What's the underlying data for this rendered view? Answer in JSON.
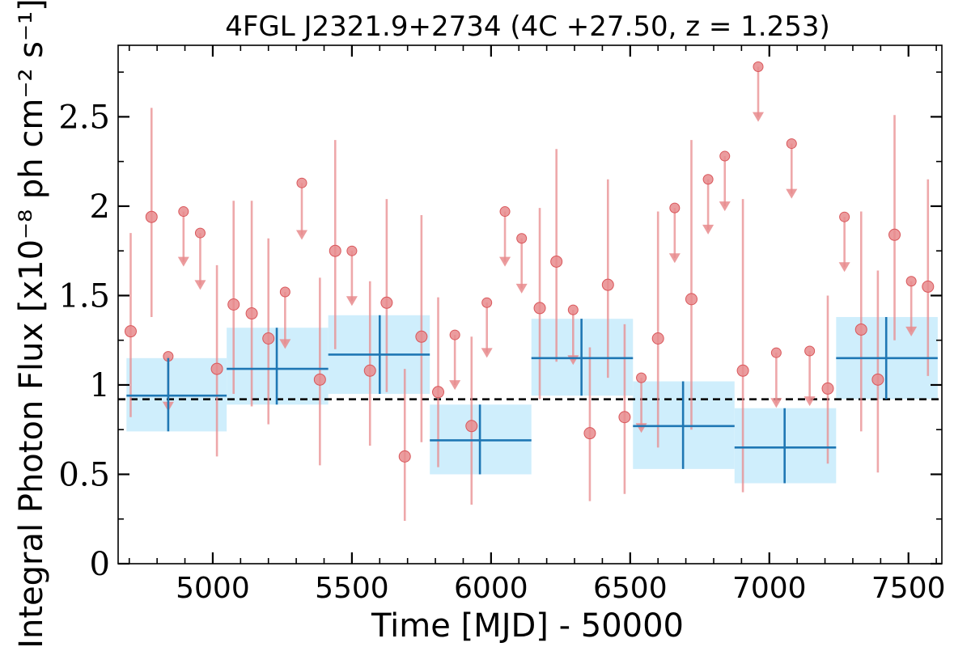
{
  "chart_data": {
    "type": "scatter",
    "title": "4FGL J2321.9+2734 (4C +27.50, z = 1.253)",
    "xlabel": "Time [MJD] - 50000",
    "ylabel": "Integral Photon Flux [x10⁻⁸ ph cm⁻² s⁻¹]",
    "xlim": [
      4660,
      7620
    ],
    "ylim": [
      0,
      2.9
    ],
    "x_ticks": [
      5000,
      5500,
      6000,
      6500,
      7000,
      7500
    ],
    "y_ticks": [
      0,
      0.5,
      1,
      1.5,
      2,
      2.5
    ],
    "y_tick_labels": [
      "0",
      "0.5",
      "1",
      "1.5",
      "2",
      "2.5"
    ],
    "mean_flux": 0.92,
    "colors": {
      "short_bin": "#e88b8d",
      "long_bin": "#1f77b4",
      "long_bin_band": "#cfeefc",
      "mean_line": "#000000"
    },
    "short_bins_detections": [
      {
        "x": 4705,
        "y": 1.3,
        "lo": 0.82,
        "hi": 1.85
      },
      {
        "x": 4780,
        "y": 1.94,
        "lo": 1.38,
        "hi": 2.55
      },
      {
        "x": 5015,
        "y": 1.09,
        "lo": 0.6,
        "hi": 1.67
      },
      {
        "x": 5075,
        "y": 1.45,
        "lo": 0.95,
        "hi": 2.03
      },
      {
        "x": 5140,
        "y": 1.4,
        "lo": 0.88,
        "hi": 2.03
      },
      {
        "x": 5200,
        "y": 1.26,
        "lo": 0.78,
        "hi": 1.82
      },
      {
        "x": 5385,
        "y": 1.03,
        "lo": 0.55,
        "hi": 1.6
      },
      {
        "x": 5440,
        "y": 1.75,
        "lo": 1.2,
        "hi": 2.37
      },
      {
        "x": 5565,
        "y": 1.08,
        "lo": 0.66,
        "hi": 1.58
      },
      {
        "x": 5625,
        "y": 1.46,
        "lo": 0.96,
        "hi": 2.04
      },
      {
        "x": 5690,
        "y": 0.6,
        "lo": 0.24,
        "hi": 1.09
      },
      {
        "x": 5750,
        "y": 1.27,
        "lo": 0.68,
        "hi": 1.95
      },
      {
        "x": 5810,
        "y": 0.96,
        "lo": 0.54,
        "hi": 1.49
      },
      {
        "x": 5930,
        "y": 0.77,
        "lo": 0.33,
        "hi": 1.27
      },
      {
        "x": 6175,
        "y": 1.43,
        "lo": 0.92,
        "hi": 1.99
      },
      {
        "x": 6235,
        "y": 1.69,
        "lo": 1.13,
        "hi": 2.32
      },
      {
        "x": 6355,
        "y": 0.73,
        "lo": 0.35,
        "hi": 1.21
      },
      {
        "x": 6420,
        "y": 1.56,
        "lo": 1.04,
        "hi": 2.15
      },
      {
        "x": 6480,
        "y": 0.82,
        "lo": 0.39,
        "hi": 1.34
      },
      {
        "x": 6600,
        "y": 1.26,
        "lo": 0.65,
        "hi": 1.97
      },
      {
        "x": 6720,
        "y": 1.48,
        "lo": 0.75,
        "hi": 2.37
      },
      {
        "x": 6905,
        "y": 1.08,
        "lo": 0.4,
        "hi": 2.04
      },
      {
        "x": 7210,
        "y": 0.98,
        "lo": 0.56,
        "hi": 1.5
      },
      {
        "x": 7330,
        "y": 1.31,
        "lo": 0.74,
        "hi": 1.97
      },
      {
        "x": 7390,
        "y": 1.03,
        "lo": 0.51,
        "hi": 1.64
      },
      {
        "x": 7450,
        "y": 1.84,
        "lo": 1.25,
        "hi": 2.51
      },
      {
        "x": 7570,
        "y": 1.55,
        "lo": 1.05,
        "hi": 2.15
      }
    ],
    "short_bins_upper_limits": [
      {
        "x": 4840,
        "y": 1.16,
        "arrow_to": 0.87
      },
      {
        "x": 4895,
        "y": 1.97,
        "arrow_to": 1.68
      },
      {
        "x": 4955,
        "y": 1.85,
        "arrow_to": 1.55
      },
      {
        "x": 5260,
        "y": 1.52,
        "arrow_to": 1.22
      },
      {
        "x": 5320,
        "y": 2.13,
        "arrow_to": 1.83
      },
      {
        "x": 5500,
        "y": 1.75,
        "arrow_to": 1.46
      },
      {
        "x": 5870,
        "y": 1.28,
        "arrow_to": 0.99
      },
      {
        "x": 5985,
        "y": 1.46,
        "arrow_to": 1.17
      },
      {
        "x": 6050,
        "y": 1.97,
        "arrow_to": 1.68
      },
      {
        "x": 6110,
        "y": 1.82,
        "arrow_to": 1.53
      },
      {
        "x": 6295,
        "y": 1.42,
        "arrow_to": 1.13
      },
      {
        "x": 6540,
        "y": 1.04,
        "arrow_to": 0.75
      },
      {
        "x": 6660,
        "y": 1.99,
        "arrow_to": 1.7
      },
      {
        "x": 6780,
        "y": 2.15,
        "arrow_to": 1.86
      },
      {
        "x": 6840,
        "y": 2.28,
        "arrow_to": 1.99
      },
      {
        "x": 6960,
        "y": 2.78,
        "arrow_to": 2.49
      },
      {
        "x": 7025,
        "y": 1.18,
        "arrow_to": 0.89
      },
      {
        "x": 7080,
        "y": 2.35,
        "arrow_to": 2.06
      },
      {
        "x": 7145,
        "y": 1.19,
        "arrow_to": 0.9
      },
      {
        "x": 7270,
        "y": 1.94,
        "arrow_to": 1.65
      },
      {
        "x": 7510,
        "y": 1.58,
        "arrow_to": 1.29
      }
    ],
    "long_bins": [
      {
        "x0": 4690,
        "x1": 5050,
        "xc": 4840,
        "y": 0.94,
        "lo": 0.74,
        "hi": 1.15
      },
      {
        "x0": 5050,
        "x1": 5415,
        "xc": 5230,
        "y": 1.09,
        "lo": 0.89,
        "hi": 1.32
      },
      {
        "x0": 5415,
        "x1": 5780,
        "xc": 5600,
        "y": 1.17,
        "lo": 0.95,
        "hi": 1.39
      },
      {
        "x0": 5780,
        "x1": 6145,
        "xc": 5960,
        "y": 0.69,
        "lo": 0.5,
        "hi": 0.89
      },
      {
        "x0": 6145,
        "x1": 6510,
        "xc": 6325,
        "y": 1.15,
        "lo": 0.94,
        "hi": 1.37
      },
      {
        "x0": 6510,
        "x1": 6875,
        "xc": 6690,
        "y": 0.77,
        "lo": 0.53,
        "hi": 1.02
      },
      {
        "x0": 6875,
        "x1": 7240,
        "xc": 7055,
        "y": 0.65,
        "lo": 0.45,
        "hi": 0.87
      },
      {
        "x0": 7240,
        "x1": 7605,
        "xc": 7420,
        "y": 1.15,
        "lo": 0.92,
        "hi": 1.38
      }
    ]
  }
}
